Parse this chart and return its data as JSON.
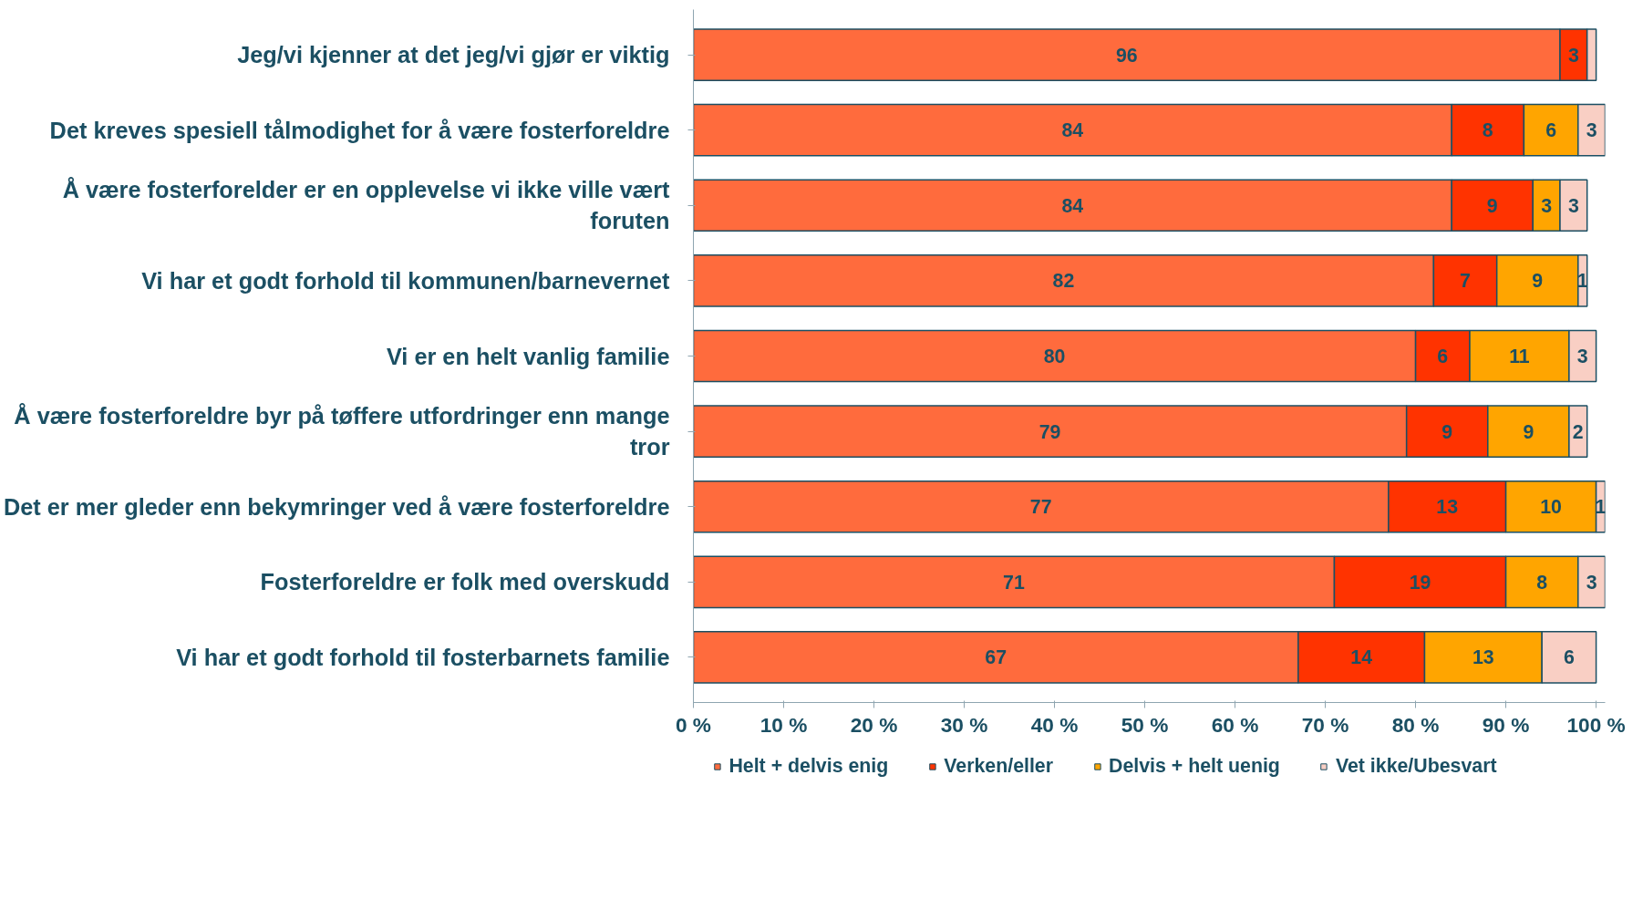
{
  "chart_data": {
    "type": "bar",
    "orientation": "horizontal",
    "stacked": true,
    "legend": "bottom",
    "grid": false,
    "categories": [
      "Jeg/vi kjenner at det jeg/vi gjør er viktig",
      "Det kreves spesiell tålmodighet for å være fosterforeldre",
      "Å være fosterforelder er en opplevelse vi ikke ville vært foruten",
      "Vi har et godt forhold til kommunen/barnevernet",
      "Vi er en helt vanlig familie",
      "Å være fosterforeldre byr på tøffere utfordringer enn mange tror",
      "Det er mer gleder enn bekymringer ved å være fosterforeldre",
      "Fosterforeldre er folk med overskudd",
      "Vi har et godt forhold til fosterbarnets familie"
    ],
    "series": [
      {
        "name": "Helt + delvis enig",
        "color": "#ff6b3d",
        "values": [
          96,
          84,
          84,
          82,
          80,
          79,
          77,
          71,
          67
        ],
        "value_labels": [
          "96",
          "84",
          "84",
          "82",
          "80",
          "79",
          "77",
          "71",
          "67"
        ]
      },
      {
        "name": "Verken/eller",
        "color": "#ff3300",
        "values": [
          3,
          8,
          9,
          7,
          6,
          9,
          13,
          19,
          14
        ],
        "value_labels": [
          "3",
          "8",
          "9",
          "7",
          "6",
          "9",
          "13",
          "19",
          "14"
        ]
      },
      {
        "name": "Delvis + helt uenig",
        "color": "#ffa500",
        "values": [
          0,
          6,
          3,
          9,
          11,
          9,
          10,
          8,
          13
        ],
        "value_labels": [
          null,
          "6",
          "3",
          "9",
          "11",
          "9",
          "10",
          "8",
          "13"
        ]
      },
      {
        "name": "Vet ikke/Ubesvart",
        "color": "#f9cfc4",
        "values": [
          1,
          3,
          3,
          1,
          3,
          2,
          1,
          3,
          6
        ],
        "value_labels": [
          null,
          "3",
          "3",
          "1",
          "3",
          "2",
          "1",
          "3",
          "6"
        ]
      }
    ],
    "xlim": [
      0,
      101
    ],
    "xticks": [
      {
        "value": 0,
        "label": "0 %"
      },
      {
        "value": 10,
        "label": "10 %"
      },
      {
        "value": 20,
        "label": "20 %"
      },
      {
        "value": 30,
        "label": "30 %"
      },
      {
        "value": 40,
        "label": "40 %"
      },
      {
        "value": 50,
        "label": "50 %"
      },
      {
        "value": 60,
        "label": "60 %"
      },
      {
        "value": 70,
        "label": "70 %"
      },
      {
        "value": 80,
        "label": "80 %"
      },
      {
        "value": 90,
        "label": "90 %"
      },
      {
        "value": 100,
        "label": "100 %"
      }
    ]
  }
}
